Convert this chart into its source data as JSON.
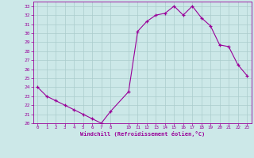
{
  "x": [
    0,
    1,
    2,
    3,
    4,
    5,
    6,
    7,
    8,
    10,
    11,
    12,
    13,
    14,
    15,
    16,
    17,
    18,
    19,
    20,
    21,
    22,
    23
  ],
  "y": [
    24.0,
    23.0,
    22.5,
    22.0,
    21.5,
    21.0,
    20.5,
    20.0,
    21.3,
    23.5,
    30.2,
    31.3,
    32.0,
    32.2,
    33.0,
    32.0,
    33.0,
    31.7,
    30.8,
    28.7,
    28.5,
    26.5,
    25.3
  ],
  "xlim": [
    -0.5,
    23.5
  ],
  "ylim": [
    20,
    33.5
  ],
  "yticks": [
    20,
    21,
    22,
    23,
    24,
    25,
    26,
    27,
    28,
    29,
    30,
    31,
    32,
    33
  ],
  "xticks": [
    0,
    1,
    2,
    3,
    4,
    5,
    6,
    7,
    8,
    10,
    11,
    12,
    13,
    14,
    15,
    16,
    17,
    18,
    19,
    20,
    21,
    22,
    23
  ],
  "xlabel": "Windchill (Refroidissement éolien,°C)",
  "line_color": "#990099",
  "marker_color": "#990099",
  "bg_color": "#cce8e8",
  "grid_color": "#aacccc",
  "tick_color": "#990099",
  "label_color": "#990099",
  "axis_color": "#990099"
}
